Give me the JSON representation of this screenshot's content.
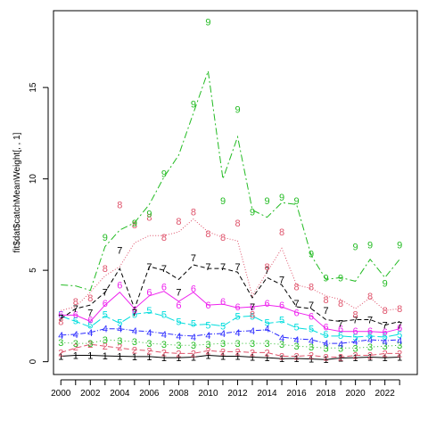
{
  "chart_data": {
    "type": "line",
    "title": "",
    "xlabel": "",
    "ylabel": "fit$dat$catchMeanWeight[, , 1]",
    "xlim": [
      1999.5,
      2024.2
    ],
    "ylim": [
      -0.7,
      19.2
    ],
    "x_ticks": [
      2000,
      2001,
      2002,
      2003,
      2004,
      2005,
      2006,
      2007,
      2008,
      2009,
      2010,
      2011,
      2012,
      2013,
      2014,
      2015,
      2016,
      2017,
      2018,
      2019,
      2020,
      2021,
      2022,
      2023
    ],
    "x_tick_labels": [
      "2000",
      "",
      "2002",
      "",
      "2004",
      "",
      "2006",
      "",
      "2008",
      "",
      "2010",
      "",
      "2012",
      "",
      "2014",
      "",
      "2016",
      "",
      "2018",
      "",
      "2020",
      "",
      "2022",
      ""
    ],
    "y_ticks": [
      0,
      5,
      10,
      15
    ],
    "y_tick_labels": [
      "0",
      "5",
      "10",
      "15"
    ],
    "grid": false,
    "x": [
      2000,
      2001,
      2002,
      2003,
      2004,
      2005,
      2006,
      2007,
      2008,
      2009,
      2010,
      2011,
      2012,
      2013,
      2014,
      2015,
      2016,
      2017,
      2018,
      2019,
      2020,
      2021,
      2022,
      2023
    ],
    "series": [
      {
        "symbol": "1",
        "color": "#000000",
        "dash": "",
        "line": [
          0.3,
          0.35,
          0.35,
          0.32,
          0.3,
          0.28,
          0.28,
          0.22,
          0.22,
          0.25,
          0.35,
          0.3,
          0.3,
          0.25,
          0.22,
          0.17,
          0.18,
          0.15,
          0.12,
          0.2,
          0.22,
          0.25,
          0.22,
          0.25
        ],
        "points": [
          0.3,
          0.35,
          0.35,
          0.32,
          0.3,
          0.28,
          0.28,
          0.22,
          0.22,
          0.25,
          0.35,
          0.3,
          0.3,
          0.25,
          0.22,
          0.17,
          0.18,
          0.15,
          0.12,
          0.2,
          0.22,
          0.25,
          0.22,
          0.25
        ]
      },
      {
        "symbol": "2",
        "color": "#df536b",
        "dash": "6 3",
        "line": [
          0.5,
          0.75,
          0.95,
          0.85,
          0.75,
          0.65,
          0.6,
          0.5,
          0.45,
          0.45,
          0.6,
          0.55,
          0.55,
          0.5,
          0.5,
          0.3,
          0.3,
          0.35,
          0.25,
          0.25,
          0.35,
          0.35,
          0.45,
          0.45
        ],
        "points": [
          0.5,
          0.8,
          0.95,
          0.85,
          0.8,
          0.65,
          0.6,
          0.5,
          0.45,
          0.45,
          0.6,
          0.55,
          0.55,
          0.5,
          0.5,
          0.3,
          0.3,
          0.35,
          0.25,
          0.25,
          0.35,
          0.35,
          0.45,
          0.45
        ]
      },
      {
        "symbol": "3",
        "color": "#22bb22",
        "dash": "1 3",
        "line": [
          1.05,
          1.0,
          1.0,
          1.2,
          1.15,
          1.1,
          1.0,
          0.95,
          0.9,
          0.9,
          0.95,
          1.0,
          1.0,
          1.0,
          1.0,
          0.95,
          0.85,
          0.8,
          0.75,
          0.75,
          0.75,
          0.8,
          0.85,
          0.9
        ],
        "points": [
          1.05,
          1.0,
          1.0,
          1.2,
          1.15,
          1.1,
          1.0,
          0.95,
          0.9,
          0.9,
          0.95,
          1.0,
          1.0,
          1.0,
          1.0,
          0.95,
          0.85,
          0.8,
          0.75,
          0.75,
          0.75,
          0.8,
          0.85,
          0.9
        ]
      },
      {
        "symbol": "4",
        "color": "#2a2aff",
        "dash": "6 2 1 2",
        "line": [
          1.45,
          1.5,
          1.6,
          1.8,
          1.8,
          1.7,
          1.65,
          1.55,
          1.45,
          1.4,
          1.5,
          1.55,
          1.65,
          1.7,
          1.75,
          1.35,
          1.25,
          1.2,
          1.0,
          1.0,
          1.1,
          1.2,
          1.15,
          1.2
        ],
        "points": [
          1.45,
          1.5,
          1.6,
          1.8,
          1.8,
          1.7,
          1.6,
          1.5,
          1.4,
          1.35,
          1.45,
          1.55,
          1.6,
          1.7,
          1.8,
          1.3,
          1.2,
          1.15,
          1.0,
          0.95,
          1.1,
          1.2,
          1.1,
          1.15
        ]
      },
      {
        "symbol": "5",
        "color": "#00dddd",
        "dash": "10 3",
        "line": [
          2.5,
          2.2,
          1.9,
          2.5,
          2.1,
          2.6,
          2.7,
          2.5,
          2.15,
          2.0,
          2.05,
          1.95,
          2.45,
          2.5,
          2.1,
          2.2,
          1.85,
          1.75,
          1.4,
          1.4,
          1.35,
          1.4,
          1.35,
          1.5
        ],
        "points": [
          2.6,
          2.25,
          2.0,
          2.6,
          2.15,
          2.6,
          2.8,
          2.6,
          2.2,
          2.1,
          2.0,
          1.95,
          2.5,
          2.5,
          2.15,
          2.3,
          1.9,
          1.8,
          1.5,
          1.45,
          1.35,
          1.45,
          1.4,
          1.5
        ]
      },
      {
        "symbol": "6",
        "color": "#ee22ee",
        "dash": "",
        "line": [
          2.55,
          2.55,
          2.2,
          3.1,
          3.8,
          2.9,
          3.6,
          3.85,
          3.3,
          3.8,
          3.1,
          3.15,
          2.95,
          3.0,
          3.1,
          3.0,
          2.7,
          2.5,
          1.8,
          1.65,
          1.65,
          1.65,
          1.6,
          1.8
        ],
        "points": [
          2.6,
          2.6,
          2.3,
          3.2,
          4.2,
          2.8,
          3.8,
          4.1,
          3.1,
          4.0,
          3.1,
          3.3,
          3.0,
          3.0,
          3.2,
          3.1,
          2.7,
          2.5,
          1.9,
          1.8,
          1.7,
          1.7,
          1.65,
          1.85
        ]
      },
      {
        "symbol": "7",
        "color": "#000000",
        "dash": "5 3",
        "line": [
          2.35,
          2.9,
          3.1,
          3.8,
          5.1,
          2.9,
          5.2,
          5.0,
          4.5,
          5.3,
          5.1,
          5.1,
          4.9,
          3.5,
          4.6,
          4.2,
          3.0,
          2.9,
          2.3,
          2.2,
          2.3,
          2.3,
          2.0,
          2.2
        ],
        "points": [
          2.4,
          2.9,
          2.7,
          3.8,
          6.1,
          2.7,
          5.2,
          5.1,
          3.8,
          5.7,
          5.2,
          5.2,
          5.2,
          3.0,
          5.0,
          4.5,
          3.2,
          3.1,
          2.8,
          2.1,
          2.3,
          2.3,
          2.0,
          2.0
        ]
      },
      {
        "symbol": "8",
        "color": "#df536b",
        "dash": "1 2",
        "line": [
          2.8,
          3.0,
          3.8,
          4.7,
          5.2,
          6.5,
          6.9,
          6.9,
          7.1,
          7.8,
          7.1,
          6.8,
          6.6,
          3.6,
          4.9,
          6.2,
          4.2,
          4.0,
          3.6,
          3.4,
          2.9,
          3.5,
          2.8,
          2.9
        ],
        "points": [
          2.2,
          3.3,
          3.5,
          5.1,
          8.6,
          7.5,
          7.9,
          6.8,
          7.7,
          8.2,
          7.0,
          6.8,
          7.6,
          2.6,
          5.2,
          7.1,
          4.1,
          4.1,
          3.4,
          3.2,
          2.6,
          3.6,
          2.8,
          2.9
        ]
      },
      {
        "symbol": "9",
        "color": "#22bb22",
        "dash": "8 3 2 3",
        "line": [
          4.2,
          4.15,
          3.9,
          6.3,
          7.2,
          7.6,
          8.6,
          10.1,
          11.3,
          13.6,
          15.9,
          10.0,
          12.3,
          8.3,
          7.9,
          8.7,
          8.6,
          5.8,
          4.5,
          4.6,
          4.4,
          5.6,
          4.6,
          5.6
        ],
        "points": [
          null,
          null,
          null,
          6.8,
          null,
          7.6,
          8.1,
          10.3,
          null,
          14.1,
          18.6,
          8.8,
          13.8,
          8.2,
          8.8,
          9.0,
          8.8,
          5.9,
          4.6,
          4.6,
          6.3,
          6.4,
          4.3,
          6.4
        ]
      }
    ]
  }
}
